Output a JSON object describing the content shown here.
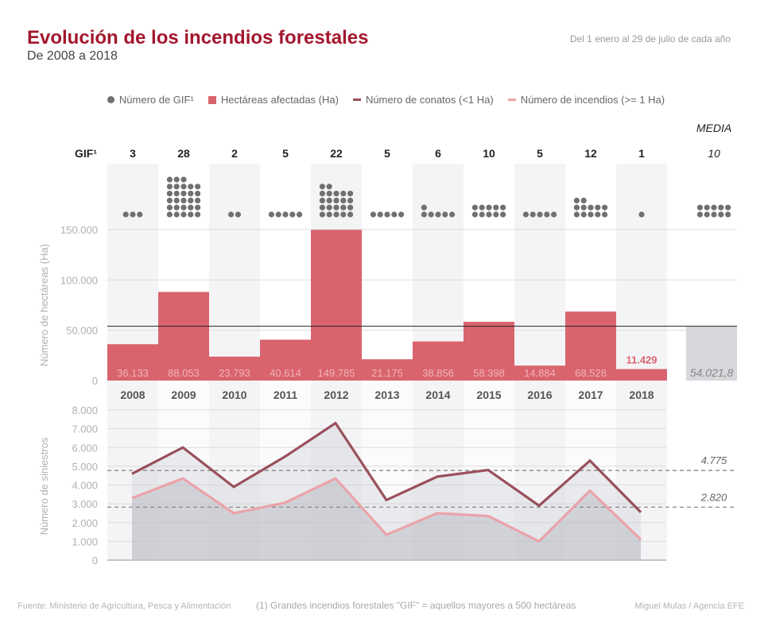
{
  "header": {
    "title": "Evolución de los incendios forestales",
    "subtitle": "De 2008 a 2018",
    "period": "Del 1 enero al 29 de julio de cada año"
  },
  "legend": [
    {
      "label": "Número de GIF¹",
      "kind": "dot",
      "color": "#707070"
    },
    {
      "label": "Hectáreas afectadas (Ha)",
      "kind": "square",
      "color": "#d9646e"
    },
    {
      "label": "Número de conatos (<1 Ha)",
      "kind": "line",
      "color": "#99505c"
    },
    {
      "label": "Número de incendios (>= 1 Ha)",
      "kind": "line",
      "color": "#eba3aa"
    }
  ],
  "footer": {
    "source": "Fuente: Ministerio de Agricultura, Pesca y Alimentación",
    "note": "(1) Grandes incendios forestales \"GIF\" = aquellos mayores a 500 hectáreas",
    "credit": "Miguel Mulas / Agencia EFE"
  },
  "colors": {
    "title": "#a3172d",
    "bar": "#d9646e",
    "bar_label": "#f1b3b8",
    "highlight_label": "#d9646e",
    "mean_bar": "#d7d8dc",
    "gif_dot": "#707070",
    "conatos": "#99505c",
    "incendios": "#eba3aa",
    "band": "#f4f4f6"
  },
  "chart_data": [
    {
      "type": "table",
      "title": "GIF¹",
      "row_label": "GIF¹",
      "categories": [
        "2008",
        "2009",
        "2010",
        "2011",
        "2012",
        "2013",
        "2014",
        "2015",
        "2016",
        "2017",
        "2018"
      ],
      "values": [
        3,
        28,
        2,
        5,
        22,
        5,
        6,
        10,
        5,
        12,
        1
      ],
      "mean_label": "MEDIA",
      "mean_value": "10",
      "mean_dots": 10
    },
    {
      "type": "bar",
      "title": "Hectáreas afectadas (Ha)",
      "ylabel": "Número de hectáreas (Ha)",
      "categories": [
        "2008",
        "2009",
        "2010",
        "2011",
        "2012",
        "2013",
        "2014",
        "2015",
        "2016",
        "2017",
        "2018"
      ],
      "values": [
        36133,
        88053,
        23793,
        40614,
        149785,
        21175,
        38856,
        58398,
        14884,
        68528,
        11429
      ],
      "value_labels": [
        "36.133",
        "88.053",
        "23.793",
        "40.614",
        "149.785",
        "21.175",
        "38.856",
        "58.398",
        "14.884",
        "68.528",
        "11.429"
      ],
      "highlight_index": 10,
      "ylim": [
        0,
        150000
      ],
      "yticks": [
        0,
        50000,
        100000,
        150000
      ],
      "ytick_labels": [
        "0",
        "50.000",
        "100.000",
        "150.000"
      ],
      "mean": 54021.8,
      "mean_label": "54.021,8",
      "grid": true
    },
    {
      "type": "area",
      "ylabel": "Número de siniestros",
      "categories": [
        "2008",
        "2009",
        "2010",
        "2011",
        "2012",
        "2013",
        "2014",
        "2015",
        "2016",
        "2017",
        "2018"
      ],
      "series": [
        {
          "name": "Número de conatos (<1 Ha)",
          "values": [
            4600,
            6000,
            3900,
            5500,
            7300,
            3200,
            4450,
            4800,
            2900,
            5300,
            2550
          ],
          "mean": 4775,
          "mean_label": "4.775"
        },
        {
          "name": "Número de incendios (>= 1 Ha)",
          "values": [
            3300,
            4350,
            2500,
            3050,
            4350,
            1350,
            2500,
            2350,
            1000,
            3700,
            1100
          ],
          "mean": 2820,
          "mean_label": "2.820"
        }
      ],
      "ylim": [
        0,
        8000
      ],
      "yticks": [
        0,
        1000,
        2000,
        3000,
        4000,
        5000,
        6000,
        7000,
        8000
      ],
      "ytick_labels": [
        "0",
        "1.000",
        "2.000",
        "3.000",
        "4.000",
        "5.000",
        "6.000",
        "7.000",
        "8.000"
      ],
      "grid": true
    }
  ]
}
